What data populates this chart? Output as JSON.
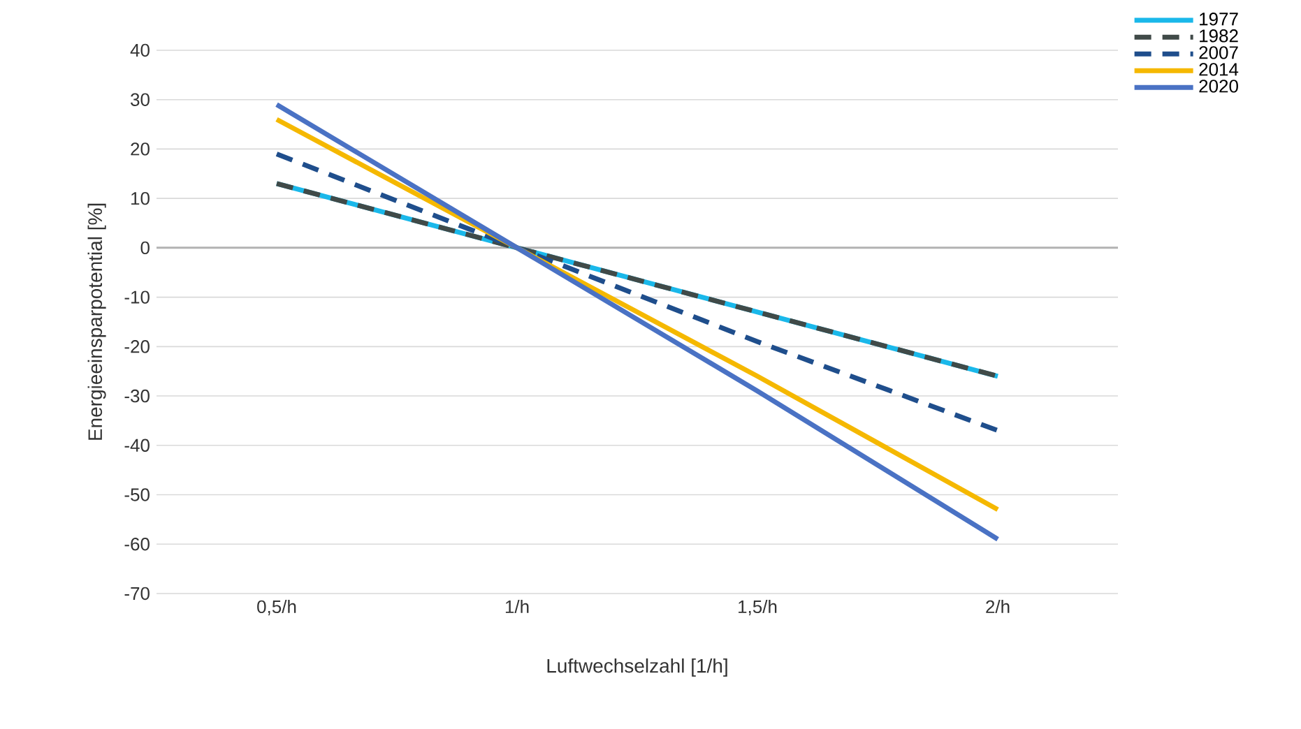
{
  "chart_data": {
    "type": "line",
    "xlabel": "Luftwechselzahl  [1/h]",
    "ylabel": "Energieeinsparpotential  [%]",
    "categories": [
      "0,5/h",
      "1/h",
      "1,5/h",
      "2/h"
    ],
    "ylim": [
      -70,
      40
    ],
    "yticks": [
      -70,
      -60,
      -50,
      -40,
      -30,
      -20,
      -10,
      0,
      10,
      20,
      30,
      40
    ],
    "grid": "y",
    "legend": "top right",
    "marker": "none",
    "series": [
      {
        "name": "1977",
        "color": "#1ab8ea",
        "line_style": "solid",
        "values": [
          13,
          0,
          -13,
          -26
        ]
      },
      {
        "name": "1982",
        "color": "#404a48",
        "line_style": "dashed",
        "values": [
          13,
          0,
          -13,
          -26
        ]
      },
      {
        "name": "2007",
        "color": "#1f4e8c",
        "line_style": "dashed",
        "values": [
          19,
          0,
          -19,
          -37
        ]
      },
      {
        "name": "2014",
        "color": "#f5b800",
        "line_style": "solid",
        "values": [
          26,
          0,
          -26,
          -53
        ]
      },
      {
        "name": "2020",
        "color": "#4a72c4",
        "line_style": "solid",
        "values": [
          29,
          0,
          -29,
          -59
        ]
      }
    ]
  }
}
